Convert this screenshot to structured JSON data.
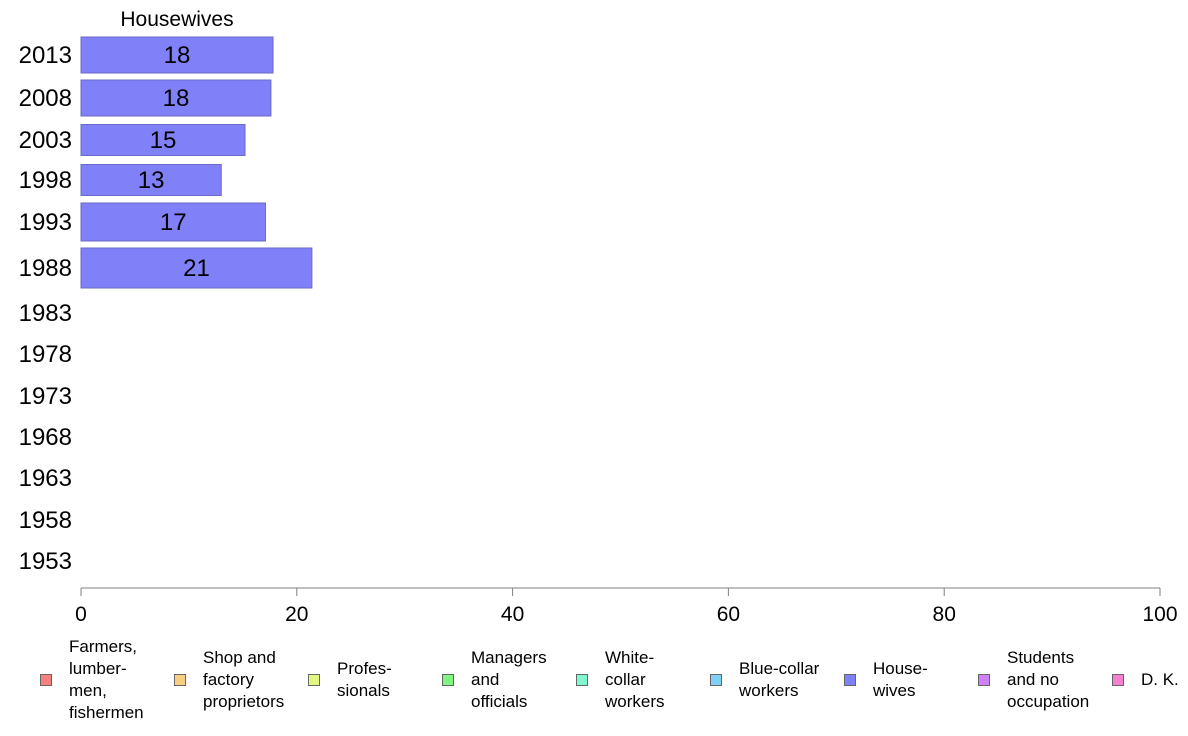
{
  "chart_data": {
    "type": "bar",
    "orientation": "horizontal",
    "title": "Housewives",
    "categories": [
      "2013",
      "2008",
      "2003",
      "1998",
      "1993",
      "1988",
      "1983",
      "1978",
      "1973",
      "1968",
      "1963",
      "1958",
      "1953"
    ],
    "series": [
      {
        "name": "House-\nwives",
        "values": [
          18,
          18,
          15,
          13,
          17,
          21,
          null,
          null,
          null,
          null,
          null,
          null,
          null
        ],
        "color": "#8080f8"
      }
    ],
    "data_labels": [
      "18",
      "18",
      "15",
      "13",
      "17",
      "21"
    ],
    "values_precise_estimates": [
      17.8,
      17.6,
      15.2,
      13.0,
      17.1,
      21.4
    ],
    "xlim": [
      0,
      100
    ],
    "xticks": [
      0,
      20,
      40,
      60,
      80,
      100
    ],
    "grid": false,
    "legend_position": "bottom",
    "legend": [
      {
        "label": "Farmers,\nlumber-\nmen,\nfishermen",
        "color": "#f88080"
      },
      {
        "label": "Shop and\nfactory\nproprietors",
        "color": "#f8d080"
      },
      {
        "label": "Profes-\nsionals",
        "color": "#e0f880"
      },
      {
        "label": "Managers\nand\nofficials",
        "color": "#80f880"
      },
      {
        "label": "White-\ncollar\nworkers",
        "color": "#80f8d0"
      },
      {
        "label": "Blue-collar\nworkers",
        "color": "#80d0f8"
      },
      {
        "label": "House-\nwives",
        "color": "#8080f8"
      },
      {
        "label": "Students\nand no\noccupation",
        "color": "#d080f8"
      },
      {
        "label": "D. K.",
        "color": "#f880d0"
      }
    ]
  }
}
